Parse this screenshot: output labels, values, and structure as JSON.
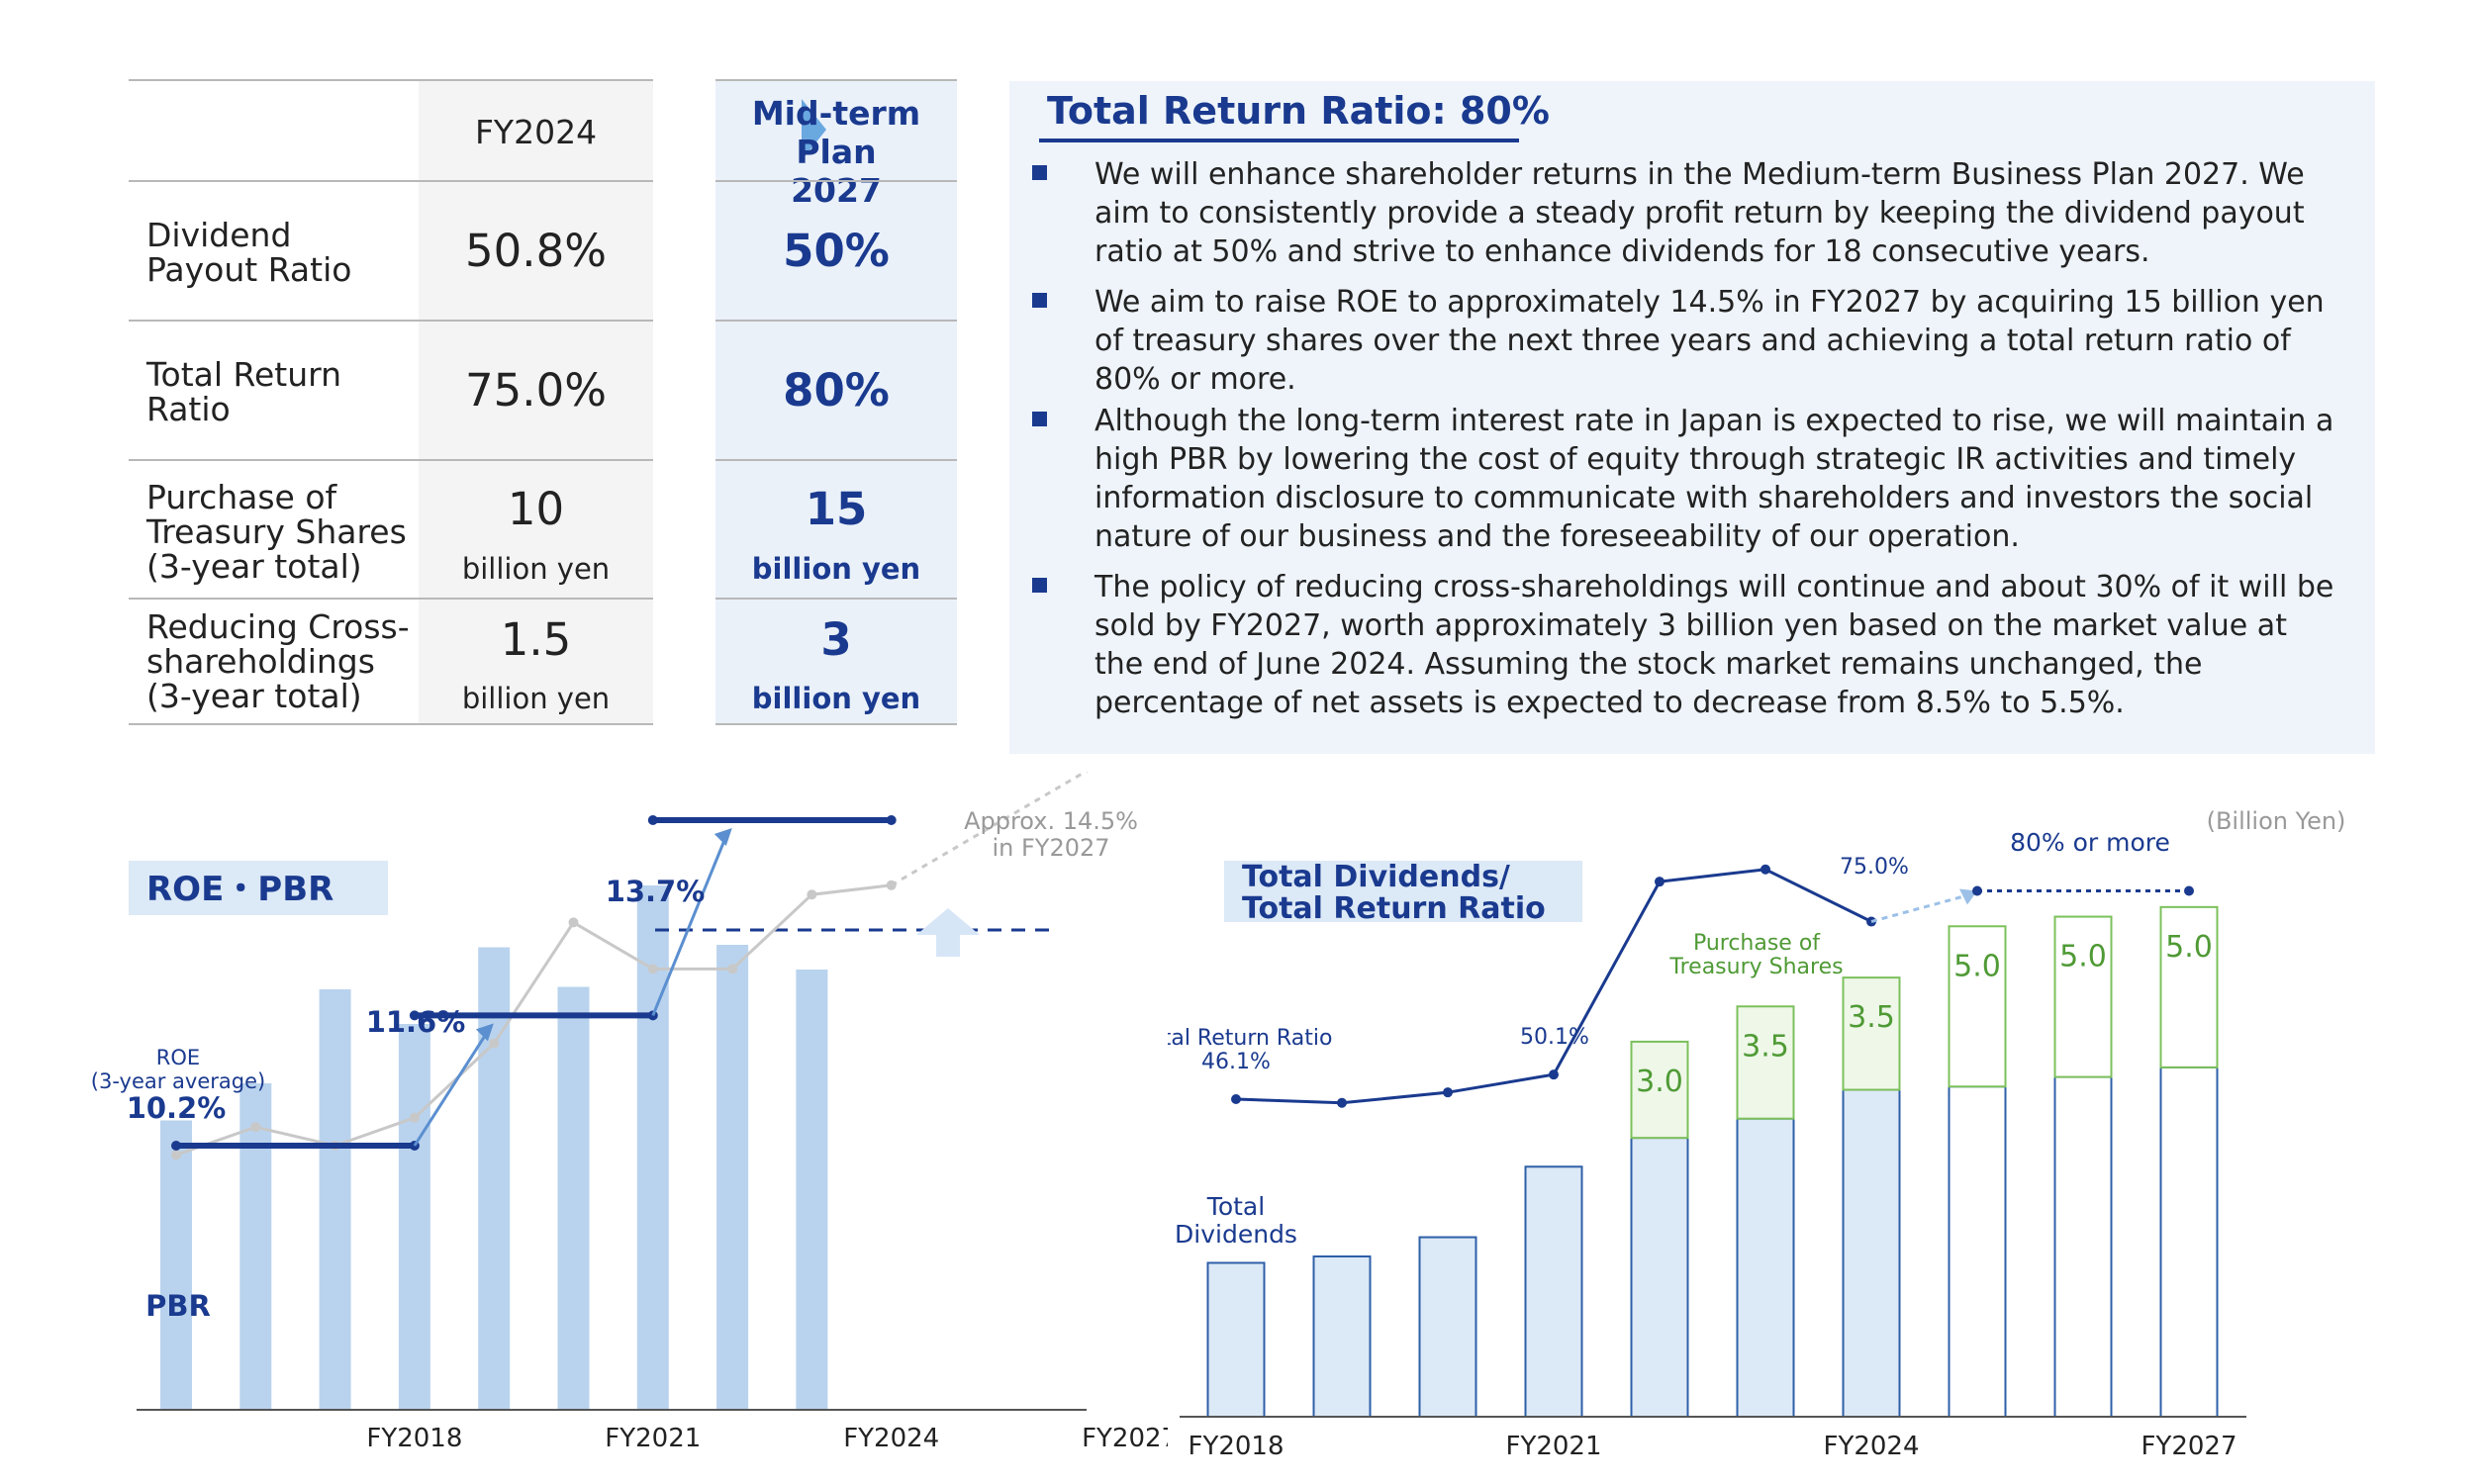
{
  "table": {
    "header_current": "FY2024",
    "header_plan": "Mid-term Plan\n2027",
    "rows": [
      {
        "label": "Dividend\nPayout Ratio",
        "current": "50.8%",
        "current_unit": "",
        "plan": "50%",
        "plan_unit": ""
      },
      {
        "label": "Total Return\nRatio",
        "current": "75.0%",
        "current_unit": "",
        "plan": "80%",
        "plan_unit": ""
      },
      {
        "label": "Purchase of\nTreasury Shares\n(3-year total)",
        "current": "10",
        "current_unit": "billion yen",
        "plan": "15",
        "plan_unit": "billion yen"
      },
      {
        "label": "Reducing Cross-\nshareholdings\n(3-year total)",
        "current": "1.5",
        "current_unit": "billion yen",
        "plan": "3",
        "plan_unit": "billion yen"
      }
    ]
  },
  "policy": {
    "title": "Total Return Ratio: 80%",
    "bullets": [
      "We will enhance shareholder returns in the Medium-term Business Plan 2027. We aim to consistently provide a steady profit return by keeping the dividend payout ratio at 50% and strive to enhance dividends for 18 consecutive years.",
      "We aim to raise ROE to approximately 14.5% in FY2027 by acquiring 15 billion yen of treasury shares over the next three years and achieving a total return ratio of 80% or more.",
      "Although the long-term interest rate in Japan is expected to rise, we will maintain a high PBR by lowering the cost of equity through strategic IR activities and timely information disclosure to communicate with shareholders and investors the social nature of our business and the foreseeability of our operation.",
      "The policy of reducing cross-shareholdings will continue and about 30% of it will be sold by FY2027, worth approximately 3 billion yen based on the market value at the end of June 2024. Assuming the stock market remains unchanged, the percentage of net assets is expected to decrease from 8.5% to 5.5%."
    ]
  },
  "colors": {
    "navy": "#1a3a8f",
    "pbr_bar": "#b9d3ee",
    "roe_gray": "#c8c8c8",
    "dividends_fill": "#dce9f6",
    "dividends_border": "#2e5fa8",
    "treasury_fill": "#eef7e8",
    "treasury_border": "#7cc05c",
    "treasury_text": "#4f9a35"
  },
  "chart_data": [
    {
      "type": "bar",
      "title": "ROE・PBR",
      "tick_labels": [
        "FY2018",
        "FY2021",
        "FY2024",
        "FY2027"
      ],
      "pbr_label": "PBR",
      "roe_label": "ROE\n(3-year average)",
      "pbr_values": [
        1.17,
        1.32,
        1.7,
        1.56,
        1.87,
        1.71,
        2.12,
        1.88,
        1.78
      ],
      "pbr_reference_level": 1.94,
      "pbr_scale_max": 2.75,
      "roe_annual": [
        10.1,
        10.4,
        10.2,
        10.5,
        11.3,
        12.6,
        12.1,
        12.1,
        12.9,
        13.0
      ],
      "roe_averages": [
        {
          "label": "10.2%",
          "value": 10.2
        },
        {
          "label": "11.6%",
          "value": 11.6
        },
        {
          "label": "13.7%",
          "value": 13.7
        }
      ],
      "roe_target": 14.5,
      "roe_target_label": "Approx. 14.5%\nin FY2027"
    },
    {
      "type": "bar",
      "title": "Total Dividends/\nTotal Return Ratio",
      "unit_label": "(Billion Yen)",
      "tick_labels": [
        "FY2018",
        "FY2021",
        "FY2024",
        "FY2027"
      ],
      "dividends_label": "Total\nDividends",
      "treasury_label": "Purchase of\nTreasury Shares",
      "return_ratio_label": "Total Return Ratio",
      "dividends": [
        4.8,
        5.0,
        5.6,
        7.8,
        8.7,
        9.3,
        10.2,
        10.3,
        10.6,
        10.9
      ],
      "treasury": [
        null,
        null,
        null,
        null,
        3.0,
        3.5,
        3.5,
        5.0,
        5.0,
        5.0
      ],
      "treasury_labels": [
        "",
        "",
        "",
        "",
        "3.0",
        "3.5",
        "3.5",
        "5.0",
        "5.0",
        "5.0"
      ],
      "total_return_ratio": [
        46.1,
        45.5,
        47.2,
        50.1,
        81.5,
        83.5,
        75.0,
        80,
        80,
        80
      ],
      "ratio_point_labels": [
        "46.1%",
        "",
        "",
        "50.1%",
        "",
        "",
        "75.0%",
        "",
        "",
        ""
      ],
      "target_label": "80% or more"
    }
  ]
}
